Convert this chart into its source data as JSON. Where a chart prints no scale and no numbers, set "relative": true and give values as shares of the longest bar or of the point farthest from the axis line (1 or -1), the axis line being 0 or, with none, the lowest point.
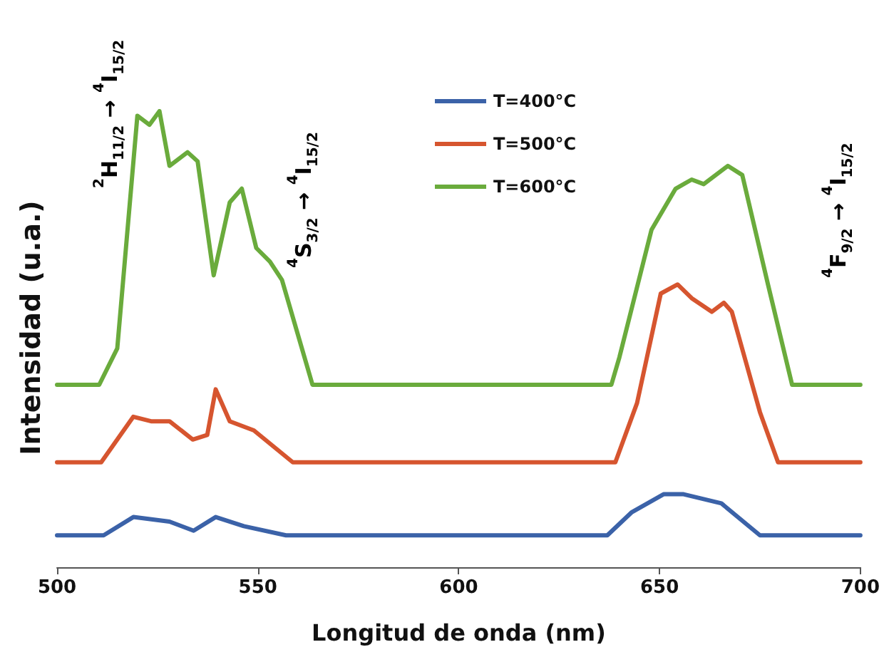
{
  "chart_data": {
    "type": "line",
    "relative": true,
    "xlabel": "Longitud de onda (nm)",
    "ylabel": "Intensidad (u.a.)",
    "xlim": [
      500,
      700
    ],
    "xticks": [
      500,
      550,
      600,
      650,
      700
    ],
    "legend": "top",
    "marker": "none",
    "line_style": "solid",
    "grid": false,
    "annotations": [
      "$^{2}$H$_{11/2}$ → $^{4}$I$_{15/2}$",
      "$^{4}$S$_{3/2}$ → $^{4}$I$_{15/2}$",
      "$^{4}$F$_{9/2}$ → $^{4}$I$_{15/2}$"
    ],
    "series": [
      {
        "name": "T=400°C",
        "color": "#3b62a8",
        "x": [
          500,
          511.6,
          519,
          528,
          534,
          539.5,
          546.5,
          557,
          637,
          643,
          651,
          656,
          665.4,
          675,
          700
        ],
        "values": [
          0.07,
          0.07,
          0.11,
          0.1,
          0.08,
          0.11,
          0.09,
          0.07,
          0.07,
          0.12,
          0.16,
          0.16,
          0.14,
          0.07,
          0.07
        ]
      },
      {
        "name": "T=500°C",
        "color": "#d6552f",
        "x": [
          500,
          511,
          519,
          523.4,
          528,
          533.8,
          537.4,
          539.5,
          543,
          549,
          558.7,
          639,
          644.4,
          650.3,
          654.5,
          658,
          663,
          666,
          668,
          675,
          679.5,
          700
        ],
        "values": [
          0.23,
          0.23,
          0.33,
          0.32,
          0.32,
          0.28,
          0.29,
          0.39,
          0.32,
          0.3,
          0.23,
          0.23,
          0.36,
          0.6,
          0.62,
          0.59,
          0.56,
          0.58,
          0.56,
          0.34,
          0.23,
          0.23
        ]
      },
      {
        "name": "T=600°C",
        "color": "#6aab3c",
        "x": [
          500,
          510.5,
          515,
          520,
          523,
          525.5,
          528,
          532.5,
          535,
          539,
          543,
          546,
          549.6,
          553,
          556,
          563.6,
          638,
          640,
          648,
          654,
          658,
          661,
          667,
          670.6,
          677,
          683,
          700
        ],
        "values": [
          0.4,
          0.4,
          0.48,
          0.99,
          0.97,
          1,
          0.88,
          0.91,
          0.89,
          0.64,
          0.8,
          0.83,
          0.7,
          0.67,
          0.63,
          0.4,
          0.4,
          0.46,
          0.74,
          0.83,
          0.85,
          0.84,
          0.88,
          0.86,
          0.62,
          0.4,
          0.4
        ]
      }
    ]
  }
}
